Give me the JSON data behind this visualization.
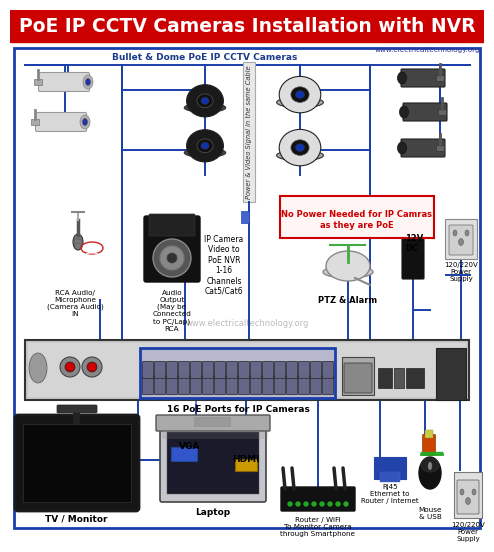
{
  "title": "PoE IP CCTV Cameras Installation with NVR",
  "title_bg": "#cc0000",
  "title_color": "#ffffff",
  "title_fontsize": 13.5,
  "bg_color": "#ffffff",
  "website_top": "www.electricaltechnology.org",
  "website_mid": "www.electricaltechnology.org",
  "subtitle": "Bullet & Dome PoE IP CCTV Cameras",
  "subtitle_color": "#1a3a8a",
  "cable_label": "Power & Video Signal in the same Cable",
  "note_text": "No Power Needed for IP Camras\nas they are PoE",
  "note_color": "#cc0000",
  "note_bg": "#ffffff",
  "nvr_label": "16 PoE Ports for IP Cameras",
  "poe_label": "IP Camera\nVideo to\nPoE NVR\n1-16\nChannels\nCat5/Cat6",
  "audio_out_label": "Audio\nOutput\n(May be\nConnected\nto PC/Lap)\nRCA",
  "rca_label": "RCA Audio/\nMicrophone\n(Camera Audio)\nIN",
  "ptz_label": "PTZ & Alarm",
  "dc_label": "12V\nDC",
  "power_label_r1": "120/220V\nPower\nSupply",
  "power_label_r2": "120/220V\nPower\nSupply",
  "tv_label": "TV / Monitor",
  "vga_label": "VGA",
  "laptop_label": "Laptop",
  "hdmi_label": "HDMI",
  "router_label": "Router / WiFi\nTo Monitor Camera\nthrough Smartphone",
  "rj45_label": "RJ45\nEthernet to\nRouter / Internet",
  "mouse_label": "Mouse\n& USB",
  "line_color": "#1a3faa",
  "lw": 1.4,
  "border_color": "#1a3faa"
}
